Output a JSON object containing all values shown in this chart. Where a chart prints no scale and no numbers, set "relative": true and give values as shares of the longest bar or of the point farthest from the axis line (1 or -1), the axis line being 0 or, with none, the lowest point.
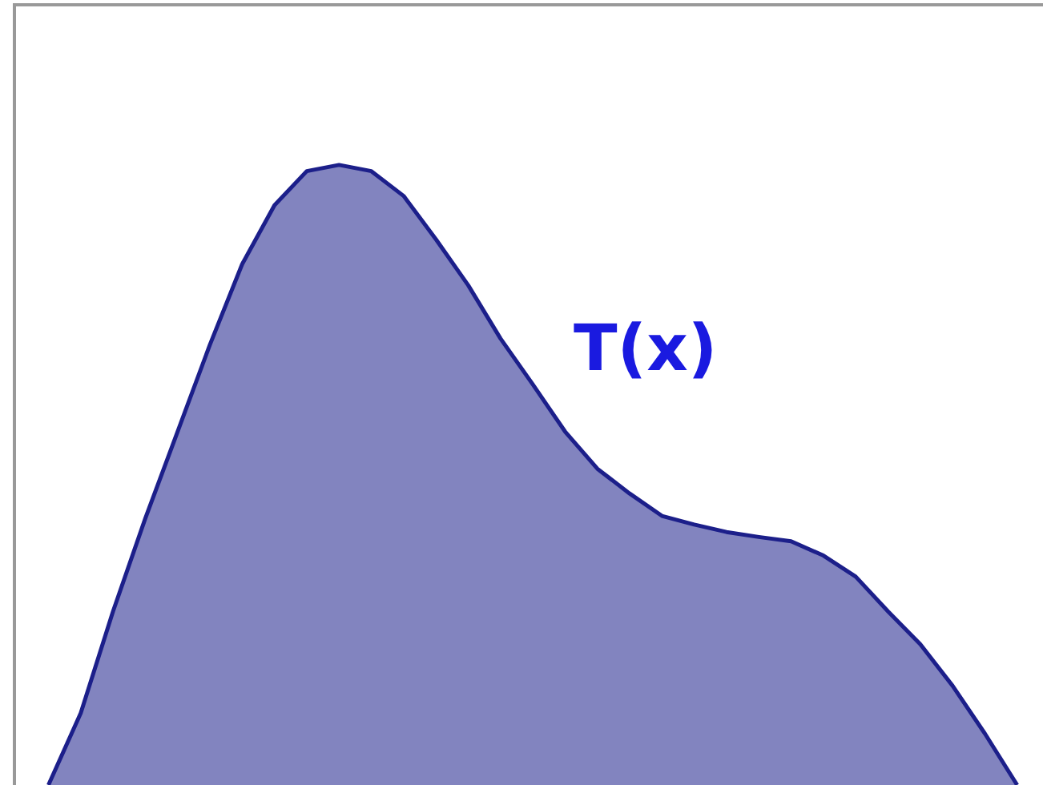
{
  "chart_data": {
    "type": "area",
    "relative": true,
    "categories": [
      null,
      null,
      null,
      null,
      null,
      null,
      null,
      null,
      null,
      null,
      null,
      null,
      null,
      null,
      null,
      null,
      null,
      null,
      null,
      null,
      null,
      null,
      null,
      null,
      null,
      null,
      null,
      null,
      null,
      null,
      null
    ],
    "series": [
      {
        "color": "#1c1f8a",
        "values": [
          0,
          0.116,
          0.28,
          0.43,
          0.57,
          0.71,
          0.84,
          0.935,
          0.99,
          1,
          0.99,
          0.95,
          0.88,
          0.806,
          0.72,
          0.646,
          0.57,
          0.51,
          0.47,
          0.434,
          0.42,
          0.408,
          0.4,
          0.393,
          0.37,
          0.336,
          0.28,
          0.227,
          0.16,
          0.083,
          0
        ]
      }
    ],
    "annotations": [
      "T(x)"
    ]
  }
}
